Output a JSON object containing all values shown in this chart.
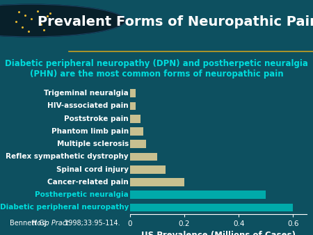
{
  "title": "Prevalent Forms of Neuropathic Pain",
  "subtitle": "Diabetic peripheral neuropathy (DPN) and postherpetic neuralgia\n(PHN) are the most common forms of neuropathic pain",
  "categories": [
    "Trigeminal neuralgia",
    "HIV-associated pain",
    "Poststroke pain",
    "Phantom limb pain",
    "Multiple sclerosis",
    "Reflex sympathetic dystrophy",
    "Spinal cord injury",
    "Cancer-related pain",
    "Postherpetic neuralgia",
    "Diabetic peripheral neuropathy"
  ],
  "values": [
    0.02,
    0.02,
    0.04,
    0.05,
    0.06,
    0.1,
    0.13,
    0.2,
    0.5,
    0.6
  ],
  "bar_color_normal": "#c8c090",
  "bar_color_highlight": "#00aaaa",
  "highlight_indices": [
    8,
    9
  ],
  "xlabel": "US Prevalence (Millions of Cases)",
  "xlim": [
    0,
    0.65
  ],
  "xtick_vals": [
    0,
    0.2,
    0.4,
    0.6
  ],
  "xtick_labels": [
    "0",
    "0.2",
    "0.4",
    "0.6"
  ],
  "background_color": "#0d5060",
  "text_color_white": "#ffffff",
  "text_color_cyan": "#00dddd",
  "citation": "Bennett GJ. Hosp Pract. 1998;33:95-114.",
  "title_fontsize": 14,
  "subtitle_fontsize": 8.5,
  "label_fontsize": 7.5,
  "xlabel_fontsize": 8.5,
  "citation_fontsize": 7,
  "gold_line_color": "#c8a020"
}
